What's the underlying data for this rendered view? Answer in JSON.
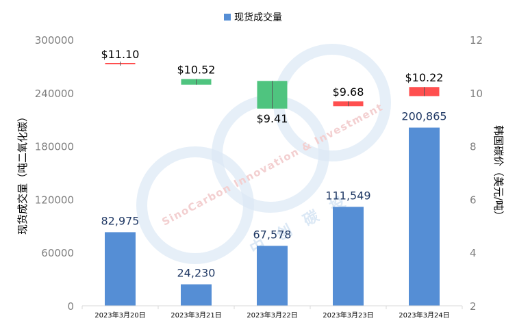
{
  "chart_data": {
    "type": "bar",
    "categories": [
      "2023年3月20日",
      "2023年3月21日",
      "2023年3月22日",
      "2023年3月23日",
      "2023年3月24日"
    ],
    "series": [
      {
        "name": "现货成交量",
        "type": "bar",
        "axis": "left",
        "values": [
          82975,
          24230,
          67578,
          111549,
          200865
        ],
        "labels": [
          "82,975",
          "24,230",
          "67,578",
          "111,549",
          "200,865"
        ]
      }
    ],
    "price_candles": [
      {
        "open": 11.1,
        "close": 11.1,
        "label": "$11.10",
        "direction": "down"
      },
      {
        "open": 10.52,
        "close": 10.31,
        "label": "$10.52",
        "direction": "up"
      },
      {
        "open": 10.45,
        "close": 9.41,
        "label": "$9.41",
        "direction": "up"
      },
      {
        "open": 9.68,
        "close": 9.5,
        "label": "$9.68",
        "direction": "down"
      },
      {
        "open": 10.22,
        "close": 9.88,
        "label": "$10.22",
        "direction": "down"
      }
    ],
    "ylabel": "现货成交量（吨二氧化碳）",
    "y2label": "韩国碳价（美元/吨）",
    "ylim": [
      0,
      300000
    ],
    "yticks": [
      "0",
      "60000",
      "120000",
      "180000",
      "240000",
      "300000"
    ],
    "y2lim": [
      2,
      12
    ],
    "y2ticks": [
      "2",
      "4",
      "6",
      "8",
      "10",
      "12"
    ],
    "legend_position": "top-center",
    "colors": {
      "bar": "#558ed5",
      "bar_label": "#1f3864",
      "up": "#4fc47f",
      "down": "#ff4f4f",
      "axis_text": "#7f7f7f",
      "axis_title": "#000000",
      "watermark": "#dbe8f5"
    },
    "watermark": {
      "en": "SinoCarbon Innovation & Investment",
      "cn": "中创碳投"
    }
  }
}
